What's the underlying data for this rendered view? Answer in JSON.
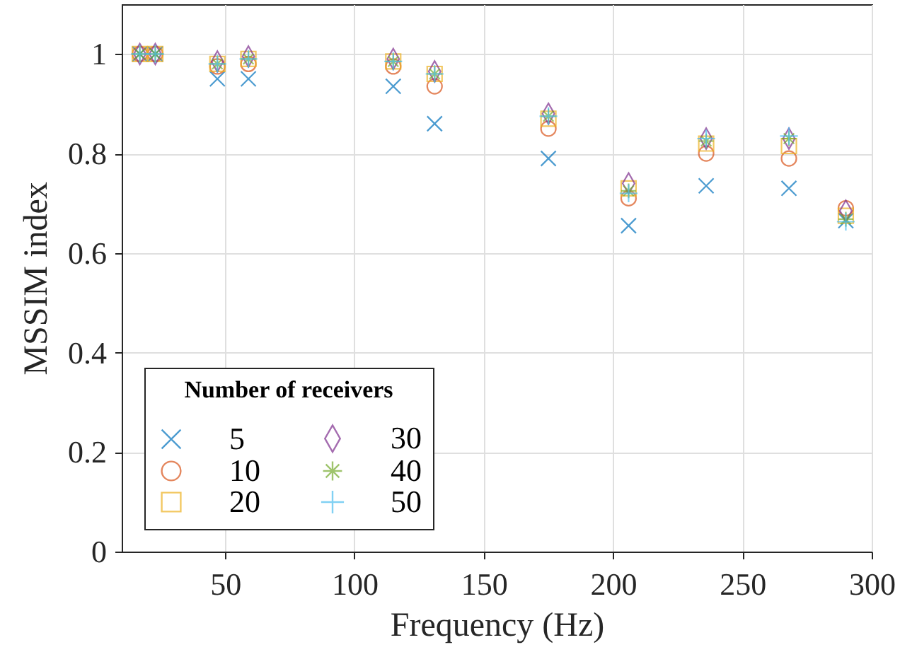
{
  "chart_data": {
    "type": "scatter",
    "xlabel": "Frequency (Hz)",
    "ylabel": "MSSIM index",
    "legend_title": "Number of receivers",
    "x": [
      17,
      23,
      47,
      59,
      115,
      131,
      175,
      206,
      236,
      268,
      290
    ],
    "xlim": [
      10,
      300
    ],
    "xticks": [
      50,
      100,
      150,
      200,
      250,
      300
    ],
    "ylim": [
      0,
      1.1
    ],
    "yticks": [
      0,
      0.2,
      0.4,
      0.6,
      0.8,
      1
    ],
    "grid": true,
    "legend": "bottom left",
    "series": [
      {
        "name": "5",
        "color": "#0072bd",
        "marker": "x",
        "values": [
          1,
          1,
          0.95,
          0.95,
          0.935,
          0.86,
          0.79,
          0.655,
          0.735,
          0.73,
          0.665
        ]
      },
      {
        "name": "10",
        "color": "#d95319",
        "marker": "circle",
        "values": [
          1,
          1,
          0.975,
          0.98,
          0.975,
          0.935,
          0.85,
          0.71,
          0.8,
          0.79,
          0.69
        ]
      },
      {
        "name": "20",
        "color": "#edb120",
        "marker": "square",
        "values": [
          1,
          1,
          0.98,
          0.99,
          0.985,
          0.96,
          0.87,
          0.73,
          0.82,
          0.815,
          0.675
        ]
      },
      {
        "name": "30",
        "color": "#7e2f8e",
        "marker": "diamond",
        "values": [
          1,
          1,
          0.985,
          0.995,
          0.99,
          0.965,
          0.88,
          0.74,
          0.83,
          0.83,
          0.685
        ]
      },
      {
        "name": "40",
        "color": "#77ac30",
        "marker": "cross",
        "values": [
          1,
          1,
          0.98,
          0.99,
          0.985,
          0.96,
          0.875,
          0.725,
          0.825,
          0.83,
          0.668
        ]
      },
      {
        "name": "50",
        "color": "#4dbeee",
        "marker": "plus",
        "values": [
          1,
          1,
          0.98,
          0.99,
          0.985,
          0.96,
          0.875,
          0.72,
          0.83,
          0.835,
          0.663
        ]
      }
    ]
  }
}
